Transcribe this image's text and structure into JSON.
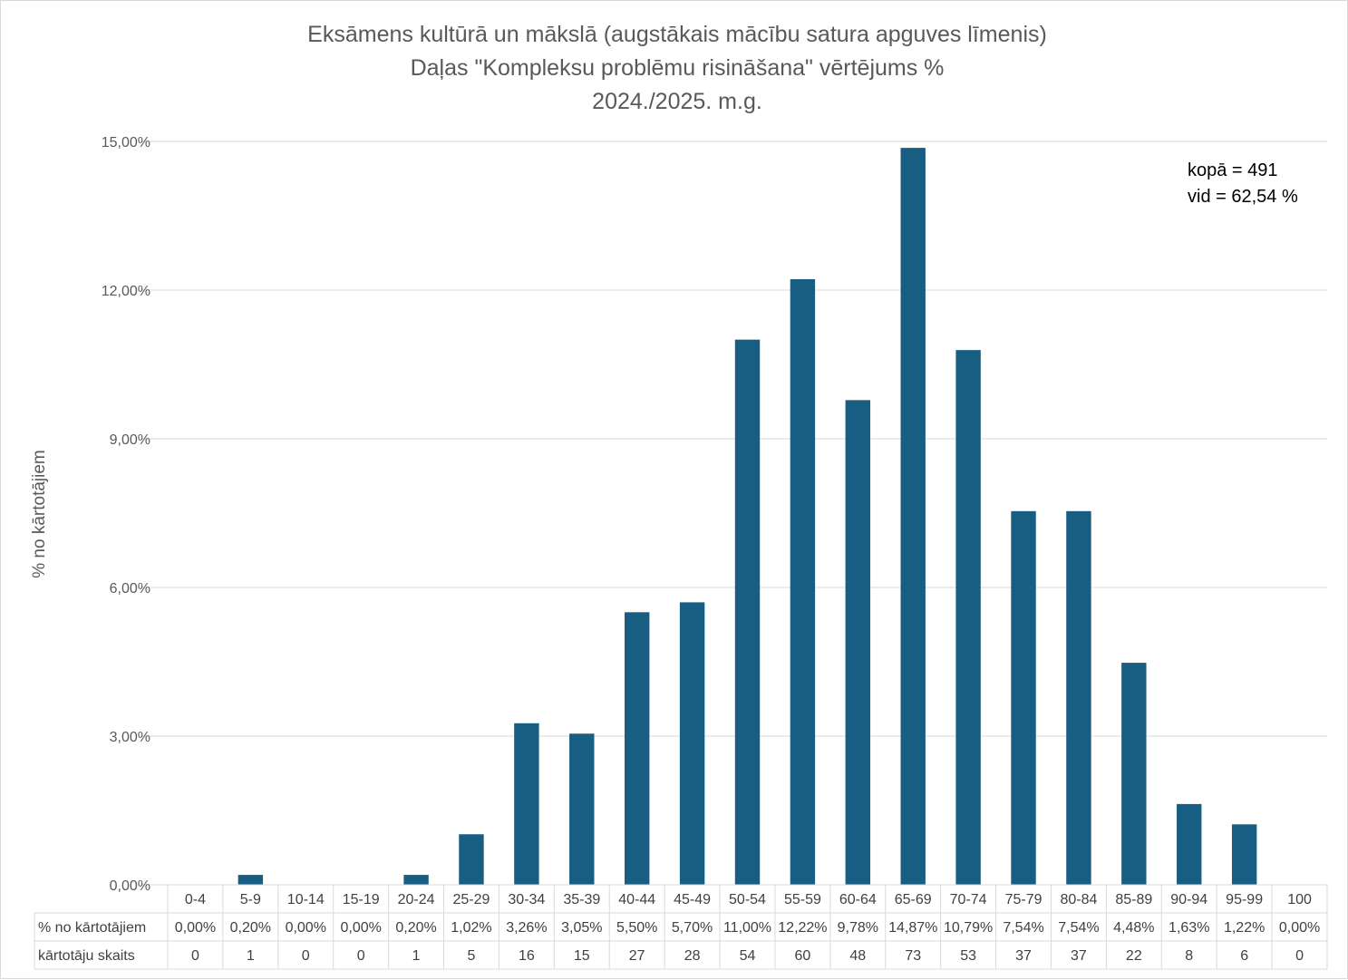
{
  "colors": {
    "bar": "#175e82",
    "grid": "#d9d9d9",
    "text": "#595959"
  },
  "chart_data": {
    "type": "bar",
    "title": [
      "Eksāmens kultūrā un mākslā (augstākais mācību satura apguves līmenis)",
      "Daļas \"Kompleksu problēmu risināšana\" vērtējums %",
      "2024./2025. m.g."
    ],
    "ylabel": "% no kārtotājiem",
    "ylim": [
      0,
      15
    ],
    "yticks": [
      0,
      3,
      6,
      9,
      12,
      15
    ],
    "ytick_labels": [
      "0,00%",
      "3,00%",
      "6,00%",
      "9,00%",
      "12,00%",
      "15,00%"
    ],
    "categories": [
      "0-4",
      "5-9",
      "10-14",
      "15-19",
      "20-24",
      "25-29",
      "30-34",
      "35-39",
      "40-44",
      "45-49",
      "50-54",
      "55-59",
      "60-64",
      "65-69",
      "70-74",
      "75-79",
      "80-84",
      "85-89",
      "90-94",
      "95-99",
      "100"
    ],
    "values": [
      0.0,
      0.2,
      0.0,
      0.0,
      0.2,
      1.02,
      3.26,
      3.05,
      5.5,
      5.7,
      11.0,
      12.22,
      9.78,
      14.87,
      10.79,
      7.54,
      7.54,
      4.48,
      1.63,
      1.22,
      0.0
    ],
    "table_rows": [
      {
        "label": "% no kārtotājiem",
        "cells": [
          "0,00%",
          "0,20%",
          "0,00%",
          "0,00%",
          "0,20%",
          "1,02%",
          "3,26%",
          "3,05%",
          "5,50%",
          "5,70%",
          "11,00%",
          "12,22%",
          "9,78%",
          "14,87%",
          "10,79%",
          "7,54%",
          "7,54%",
          "4,48%",
          "1,63%",
          "1,22%",
          "0,00%"
        ]
      },
      {
        "label": "kārtotāju skaits",
        "cells": [
          "0",
          "1",
          "0",
          "0",
          "1",
          "5",
          "16",
          "15",
          "27",
          "28",
          "54",
          "60",
          "48",
          "73",
          "53",
          "37",
          "37",
          "22",
          "8",
          "6",
          "0"
        ]
      }
    ],
    "annotations": [
      "kopā = 491",
      "vid = 62,54 %"
    ],
    "grid": true
  }
}
